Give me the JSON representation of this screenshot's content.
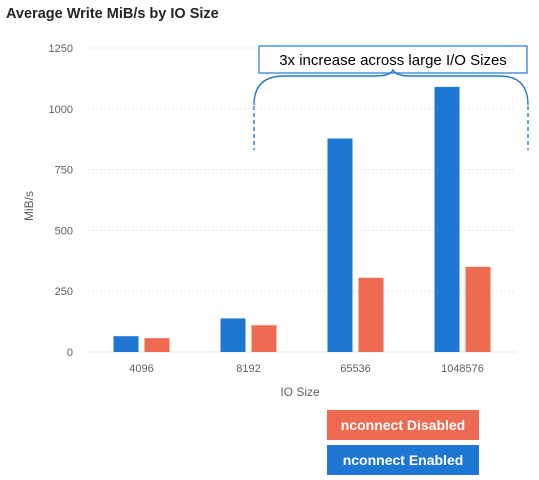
{
  "chart_data": {
    "type": "bar",
    "title": "Average Write MiB/s by IO Size",
    "xlabel": "IO Size",
    "ylabel": "MiB/s",
    "ylim": [
      0,
      1250
    ],
    "yticks": [
      0,
      250,
      500,
      750,
      1000,
      1250
    ],
    "categories": [
      "4096",
      "8192",
      "65536",
      "1048576"
    ],
    "series": [
      {
        "name": "nconnect Enabled",
        "color": "#1F77D4",
        "values": [
          65,
          138,
          878,
          1090
        ]
      },
      {
        "name": "nconnect Disabled",
        "color": "#EE6A50",
        "values": [
          57,
          110,
          305,
          350
        ]
      }
    ],
    "annotation": "3x increase across large I/O Sizes",
    "legend_position": "bottom-right",
    "grid": true
  }
}
